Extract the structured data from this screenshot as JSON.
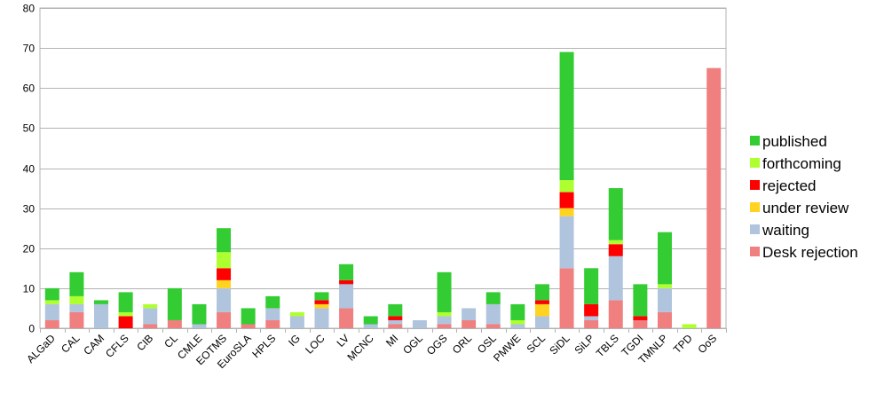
{
  "chart_data": {
    "type": "bar",
    "stacked": true,
    "title": "",
    "xlabel": "",
    "ylabel": "",
    "ylim": [
      0,
      80
    ],
    "yticks": [
      0,
      10,
      20,
      30,
      40,
      50,
      60,
      70,
      80
    ],
    "grid": "horizontal",
    "legend_position": "right",
    "categories": [
      "ALGaD",
      "CAL",
      "CAM",
      "CFLS",
      "CIB",
      "CL",
      "CMLE",
      "EOTMS",
      "EuroSLA",
      "HPLS",
      "IG",
      "LOC",
      "LV",
      "MCNC",
      "MI",
      "OGL",
      "OGS",
      "ORL",
      "OSL",
      "PMWE",
      "SCL",
      "SiDL",
      "SiLP",
      "TBLS",
      "TGDI",
      "TMNLP",
      "TPD",
      "OoS"
    ],
    "series": [
      {
        "name": "Desk rejection",
        "color": "#f08080",
        "values": [
          2,
          4,
          0,
          0,
          1,
          2,
          0,
          4,
          1,
          2,
          0,
          0,
          5,
          0,
          1,
          0,
          1,
          2,
          1,
          0,
          0,
          15,
          2,
          7,
          2,
          4,
          0,
          65
        ]
      },
      {
        "name": "waiting",
        "color": "#b0c4de",
        "values": [
          4,
          2,
          6,
          0,
          4,
          0,
          1,
          6,
          0,
          3,
          3,
          5,
          6,
          1,
          1,
          2,
          2,
          3,
          5,
          1,
          3,
          13,
          1,
          11,
          0,
          6,
          0,
          0
        ]
      },
      {
        "name": "under review",
        "color": "#ffd320",
        "values": [
          0,
          0,
          0,
          0,
          0,
          0,
          0,
          2,
          0,
          0,
          0,
          1,
          0,
          0,
          0,
          0,
          0,
          0,
          0,
          0,
          3,
          2,
          0,
          0,
          0,
          0,
          0,
          0
        ]
      },
      {
        "name": "rejected",
        "color": "#ff0000",
        "values": [
          0,
          0,
          0,
          3,
          0,
          0,
          0,
          3,
          0,
          0,
          0,
          1,
          1,
          0,
          1,
          0,
          0,
          0,
          0,
          0,
          1,
          4,
          3,
          3,
          1,
          0,
          0,
          0
        ]
      },
      {
        "name": "forthcoming",
        "color": "#adff2f",
        "values": [
          1,
          2,
          0,
          1,
          1,
          0,
          0,
          4,
          0,
          0,
          1,
          0,
          0,
          0,
          0,
          0,
          1,
          0,
          0,
          1,
          0,
          3,
          0,
          1,
          0,
          1,
          1,
          0
        ]
      },
      {
        "name": "published",
        "color": "#33cc33",
        "values": [
          3,
          6,
          1,
          5,
          0,
          8,
          5,
          6,
          4,
          3,
          0,
          2,
          4,
          2,
          3,
          0,
          10,
          0,
          3,
          4,
          4,
          32,
          9,
          13,
          8,
          13,
          0,
          0
        ]
      }
    ],
    "legend_order": [
      "published",
      "forthcoming",
      "rejected",
      "under review",
      "waiting",
      "Desk rejection"
    ]
  }
}
